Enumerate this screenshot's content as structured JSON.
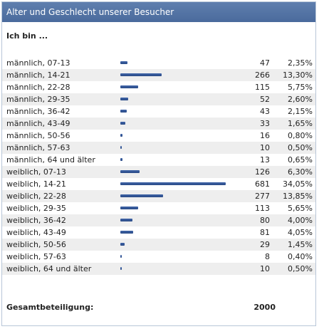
{
  "header": {
    "title": "Alter und Geschlecht unserer Besucher"
  },
  "question": "Ich bin ...",
  "colors": {
    "header_bg": "#4a6a9c",
    "bar": "#3f64a8",
    "alt_row": "#eeeeee"
  },
  "rows": [
    {
      "label": "männlich, 07-13",
      "count": "47",
      "percent": "2,35%",
      "share": 2.35
    },
    {
      "label": "männlich, 14-21",
      "count": "266",
      "percent": "13,30%",
      "share": 13.3
    },
    {
      "label": "männlich, 22-28",
      "count": "115",
      "percent": "5,75%",
      "share": 5.75
    },
    {
      "label": "männlich, 29-35",
      "count": "52",
      "percent": "2,60%",
      "share": 2.6
    },
    {
      "label": "männlich, 36-42",
      "count": "43",
      "percent": "2,15%",
      "share": 2.15
    },
    {
      "label": "männlich, 43-49",
      "count": "33",
      "percent": "1,65%",
      "share": 1.65
    },
    {
      "label": "männlich, 50-56",
      "count": "16",
      "percent": "0,80%",
      "share": 0.8
    },
    {
      "label": "männlich, 57-63",
      "count": "10",
      "percent": "0,50%",
      "share": 0.5
    },
    {
      "label": "männlich, 64 und älter",
      "count": "13",
      "percent": "0,65%",
      "share": 0.65
    },
    {
      "label": "weiblich, 07-13",
      "count": "126",
      "percent": "6,30%",
      "share": 6.3
    },
    {
      "label": "weiblich, 14-21",
      "count": "681",
      "percent": "34,05%",
      "share": 34.05
    },
    {
      "label": "weiblich, 22-28",
      "count": "277",
      "percent": "13,85%",
      "share": 13.85
    },
    {
      "label": "weiblich, 29-35",
      "count": "113",
      "percent": "5,65%",
      "share": 5.65
    },
    {
      "label": "weiblich, 36-42",
      "count": "80",
      "percent": "4,00%",
      "share": 4.0
    },
    {
      "label": "weiblich, 43-49",
      "count": "81",
      "percent": "4,05%",
      "share": 4.05
    },
    {
      "label": "weiblich, 50-56",
      "count": "29",
      "percent": "1,45%",
      "share": 1.45
    },
    {
      "label": "weiblich, 57-63",
      "count": "8",
      "percent": "0,40%",
      "share": 0.4
    },
    {
      "label": "weiblich, 64 und älter",
      "count": "10",
      "percent": "0,50%",
      "share": 0.5
    }
  ],
  "total": {
    "label": "Gesamtbeteiligung:",
    "value": "2000"
  }
}
